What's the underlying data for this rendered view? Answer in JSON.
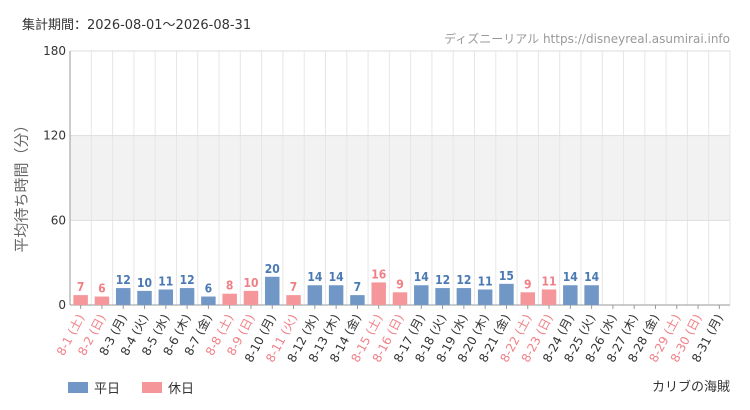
{
  "header": {
    "period": "集計期間：2026-08-01〜2026-08-31",
    "source": "ディズニーリアル https://disneyreal.asumirai.info"
  },
  "legend": {
    "weekday": "平日",
    "holiday": "休日"
  },
  "park": "カリブの海賊",
  "colors": {
    "weekday": "#7197c6",
    "holiday": "#f5969b",
    "weekday_text": "#4a79b3",
    "holiday_text": "#f07f86",
    "band": "#f2f2f2"
  },
  "chart_data": {
    "type": "bar",
    "ylabel": "平均待ち時間（分）",
    "ylim": [
      0,
      180
    ],
    "yticks": [
      0,
      60,
      120,
      180
    ],
    "grid": true,
    "legend_position": "bottom-left",
    "categories": [
      "8-1 (土)",
      "8-2 (日)",
      "8-3 (月)",
      "8-4 (火)",
      "8-5 (水)",
      "8-6 (木)",
      "8-7 (金)",
      "8-8 (土)",
      "8-9 (日)",
      "8-10 (月)",
      "8-11 (火)",
      "8-12 (水)",
      "8-13 (木)",
      "8-14 (金)",
      "8-15 (土)",
      "8-16 (日)",
      "8-17 (月)",
      "8-18 (火)",
      "8-19 (水)",
      "8-20 (木)",
      "8-21 (金)",
      "8-22 (土)",
      "8-23 (日)",
      "8-24 (月)",
      "8-25 (火)",
      "8-26 (水)",
      "8-27 (木)",
      "8-28 (金)",
      "8-29 (土)",
      "8-30 (日)",
      "8-31 (月)"
    ],
    "values": [
      7,
      6,
      12,
      10,
      11,
      12,
      6,
      8,
      10,
      20,
      7,
      14,
      14,
      7,
      16,
      9,
      14,
      12,
      12,
      11,
      15,
      9,
      11,
      14,
      14,
      null,
      null,
      null,
      null,
      null,
      null
    ],
    "day_type": [
      "休日",
      "休日",
      "平日",
      "平日",
      "平日",
      "平日",
      "平日",
      "休日",
      "休日",
      "平日",
      "休日",
      "平日",
      "平日",
      "平日",
      "休日",
      "休日",
      "平日",
      "平日",
      "平日",
      "平日",
      "平日",
      "休日",
      "休日",
      "平日",
      "平日",
      "平日",
      "平日",
      "平日",
      "休日",
      "休日",
      "平日"
    ]
  }
}
